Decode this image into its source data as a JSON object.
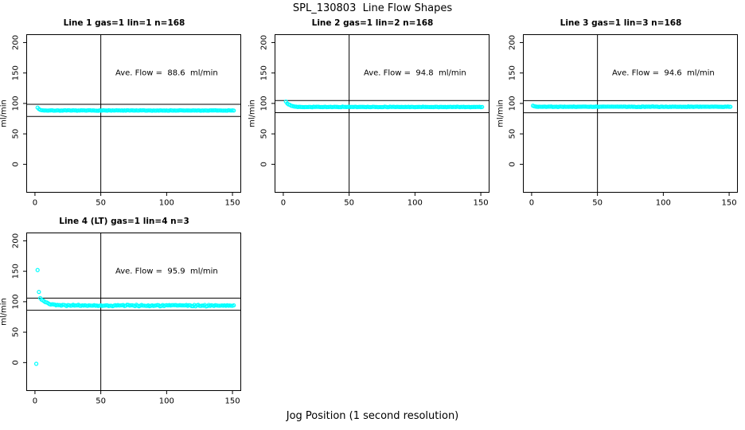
{
  "figure": {
    "title": "SPL_130803  Line Flow Shapes",
    "xlabel": "Jog Position (1 second resolution)",
    "background_color": "#ffffff",
    "point_color": "#00ffff",
    "axis_color": "#000000",
    "marker": "open-circle"
  },
  "chart_data": [
    {
      "type": "scatter",
      "title": "Line 1 gas=1 lin=1 n=168",
      "annotation": "Ave. Flow =  88.6  ml/min",
      "ave_flow": 88.6,
      "n": 168,
      "ylabel": "ml/min",
      "xticks": [
        0,
        50,
        100,
        150
      ],
      "yticks": [
        0,
        50,
        100,
        150,
        200
      ],
      "xlim": [
        -6.3,
        156.3
      ],
      "ylim": [
        -46,
        213
      ],
      "vline_x": 50,
      "hlines": [
        98.6,
        78.6
      ],
      "annotation_pos": [
        100,
        150
      ],
      "series": {
        "x_start": 2,
        "x_end": 151,
        "baseline": 88.4,
        "start_amplitude": 4.8,
        "decay_tau": 1.4,
        "noise": 0.55,
        "seed": 7
      },
      "outliers": []
    },
    {
      "type": "scatter",
      "title": "Line 2 gas=1 lin=2 n=168",
      "annotation": "Ave. Flow =  94.8  ml/min",
      "ave_flow": 94.8,
      "n": 168,
      "ylabel": "ml/min",
      "xticks": [
        0,
        50,
        100,
        150
      ],
      "yticks": [
        0,
        50,
        100,
        150,
        200
      ],
      "xlim": [
        -6.3,
        156.3
      ],
      "ylim": [
        -46,
        213
      ],
      "vline_x": 50,
      "hlines": [
        104.8,
        84.8
      ],
      "annotation_pos": [
        100,
        150
      ],
      "series": {
        "x_start": 2,
        "x_end": 151,
        "baseline": 94.2,
        "start_amplitude": 9.0,
        "decay_tau": 2.8,
        "noise": 0.6,
        "seed": 13
      },
      "outliers": []
    },
    {
      "type": "scatter",
      "title": "Line 3 gas=1 lin=3 n=168",
      "annotation": "Ave. Flow =  94.6  ml/min",
      "ave_flow": 94.6,
      "n": 168,
      "ylabel": "ml/min",
      "xticks": [
        0,
        50,
        100,
        150
      ],
      "yticks": [
        0,
        50,
        100,
        150,
        200
      ],
      "xlim": [
        -6.3,
        156.3
      ],
      "ylim": [
        -46,
        213
      ],
      "vline_x": 50,
      "hlines": [
        104.6,
        84.6
      ],
      "annotation_pos": [
        100,
        150
      ],
      "series": {
        "x_start": 1,
        "x_end": 151,
        "baseline": 94.6,
        "start_amplitude": 1.8,
        "decay_tau": 1.0,
        "noise": 0.65,
        "seed": 21
      },
      "outliers": []
    },
    {
      "type": "scatter",
      "title": "Line 4 (LT) gas=1 lin=4 n=3",
      "annotation": "Ave. Flow =  95.9  ml/min",
      "ave_flow": 95.9,
      "n": 3,
      "ylabel": "ml/min",
      "xticks": [
        0,
        50,
        100,
        150
      ],
      "yticks": [
        0,
        50,
        100,
        150,
        200
      ],
      "xlim": [
        -6.3,
        156.3
      ],
      "ylim": [
        -46,
        213
      ],
      "vline_x": 50,
      "hlines": [
        105.9,
        85.9
      ],
      "annotation_pos": [
        100,
        150
      ],
      "series": {
        "x_start": 4,
        "x_end": 151,
        "baseline": 93.7,
        "start_amplitude": 11.8,
        "decay_tau": 5.5,
        "noise": 1.7,
        "seed": 42
      },
      "outliers": [
        [
          1,
          -2
        ],
        [
          2,
          152
        ],
        [
          3,
          116
        ]
      ]
    }
  ]
}
